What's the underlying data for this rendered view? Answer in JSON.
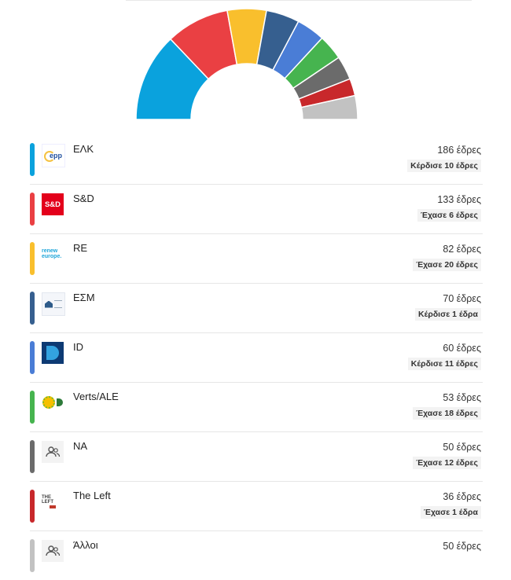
{
  "chart_data": {
    "type": "pie",
    "shape": "half-donut",
    "categories": [
      "ΕΛΚ",
      "S&D",
      "RE",
      "ΕΣΜ",
      "ID",
      "Verts/ALE",
      "NA",
      "The Left",
      "Άλλοι"
    ],
    "values": [
      186,
      133,
      82,
      70,
      60,
      53,
      50,
      36,
      50
    ],
    "colors": [
      "#0aa2dd",
      "#ea4043",
      "#f9bf2d",
      "#365f8f",
      "#4a7dd6",
      "#46b44f",
      "#6b6b6b",
      "#c8282b",
      "#c2c2c2"
    ]
  },
  "parties": [
    {
      "name": "ΕΛΚ",
      "seats": "186 έδρες",
      "change": "Κέρδισε 10 έδρες",
      "color": "#0aa2dd",
      "logo": "epp-logo",
      "logo_text": "epp"
    },
    {
      "name": "S&D",
      "seats": "133 έδρες",
      "change": "Έχασε 6 έδρες",
      "color": "#ea4043",
      "logo": "sd-logo",
      "logo_text": "S&D"
    },
    {
      "name": "RE",
      "seats": "82 έδρες",
      "change": "Έχασε 20 έδρες",
      "color": "#f9bf2d",
      "logo": "renew-europe-logo",
      "logo_text": "renew europe."
    },
    {
      "name": "ΕΣΜ",
      "seats": "70 έδρες",
      "change": "Κέρδισε 1 έδρα",
      "color": "#365f8f",
      "logo": "ecr-logo"
    },
    {
      "name": "ID",
      "seats": "60 έδρες",
      "change": "Κέρδισε 11 έδρες",
      "color": "#4a7dd6",
      "logo": "id-logo"
    },
    {
      "name": "Verts/ALE",
      "seats": "53 έδρες",
      "change": "Έχασε 18 έδρες",
      "color": "#46b44f",
      "logo": "greens-logo"
    },
    {
      "name": "NA",
      "seats": "50 έδρες",
      "change": "Έχασε 12 έδρες",
      "color": "#6b6b6b",
      "logo": "group-icon"
    },
    {
      "name": "The Left",
      "seats": "36 έδρες",
      "change": "Έχασε 1 έδρα",
      "color": "#c8282b",
      "logo": "the-left-logo",
      "logo_text": "THE LEFT"
    },
    {
      "name": "Άλλοι",
      "seats": "50 έδρες",
      "change": "",
      "color": "#c2c2c2",
      "logo": "group-icon"
    }
  ]
}
